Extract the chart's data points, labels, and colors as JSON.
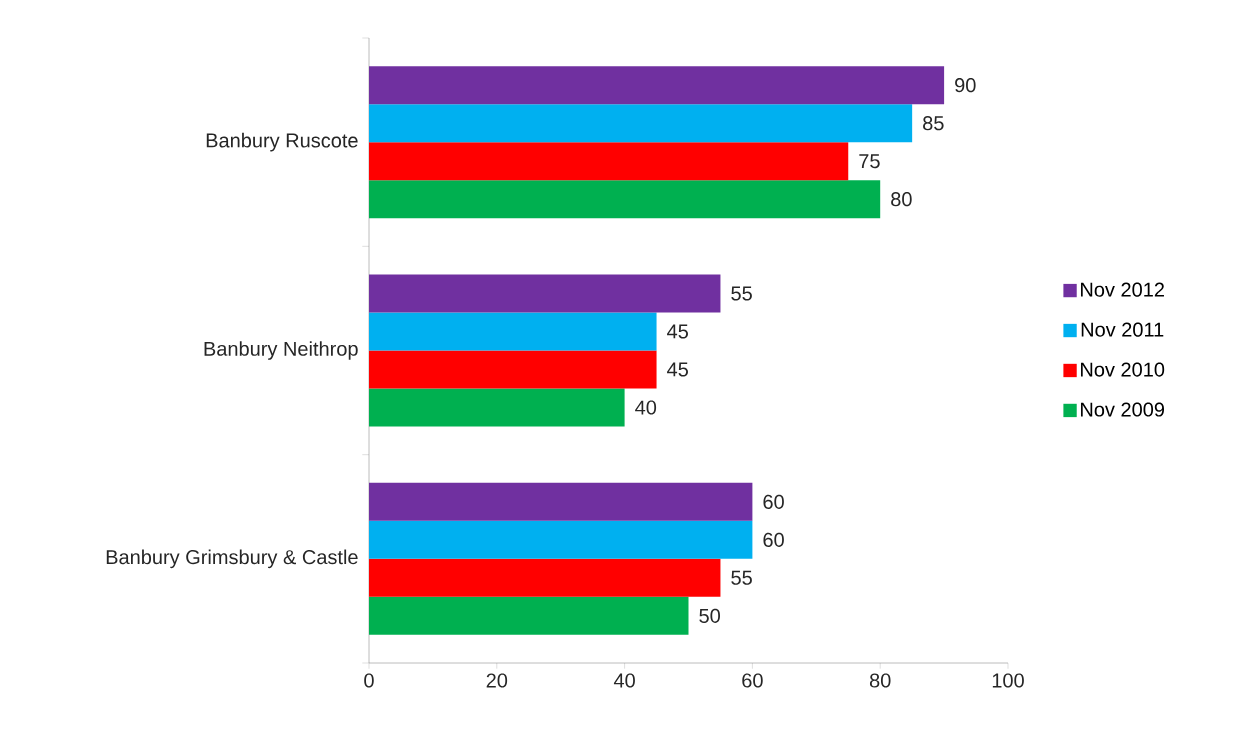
{
  "chart_data": {
    "type": "bar",
    "orientation": "horizontal",
    "categories": [
      "Banbury Ruscote",
      "Banbury Neithrop",
      "Banbury Grimsbury & Castle"
    ],
    "series": [
      {
        "name": "Nov 2012",
        "color": "#7030a0",
        "values": [
          90,
          55,
          60
        ]
      },
      {
        "name": "Nov 2011",
        "color": "#00b0f0",
        "values": [
          85,
          45,
          60
        ]
      },
      {
        "name": "Nov 2010",
        "color": "#ff0000",
        "values": [
          75,
          45,
          55
        ]
      },
      {
        "name": "Nov 2009",
        "color": "#00b050",
        "values": [
          80,
          40,
          50
        ]
      }
    ],
    "xlim": [
      0,
      100
    ],
    "xticks": [
      0,
      20,
      40,
      60,
      80,
      100
    ],
    "data_labels": true,
    "legend": "right",
    "grid": false
  }
}
